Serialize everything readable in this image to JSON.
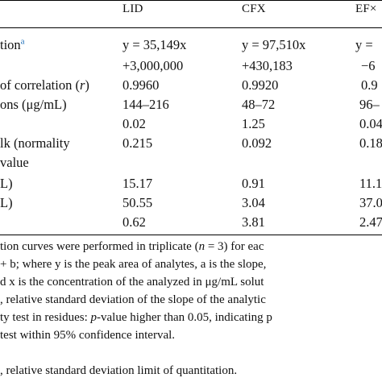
{
  "table": {
    "headers": [
      "LID",
      "CFX",
      "EFX"
    ],
    "header_visible": [
      "LID",
      "CFX",
      "EF×"
    ],
    "rows": [
      {
        "label": "tion",
        "label_sup": "a",
        "cells": [
          "y = 35,149x",
          "y = 97,510x",
          "y ="
        ]
      },
      {
        "label": "",
        "cells": [
          "+3,000,000",
          "+430,183",
          "−6"
        ]
      },
      {
        "label": "of correlation (r)",
        "cells": [
          "0.9960",
          "0.9920",
          "0.9"
        ]
      },
      {
        "label": "ons (μg/mL)",
        "cells": [
          "144–216",
          "48–72",
          "96–"
        ]
      },
      {
        "label": "",
        "cells": [
          "0.02",
          "1.25",
          "0.04"
        ]
      },
      {
        "label": "lk (normality",
        "cells": [
          "0.215",
          "0.092",
          "0.18"
        ]
      },
      {
        "label": "value",
        "cells": [
          "",
          "",
          ""
        ]
      },
      {
        "label": "L)",
        "cells": [
          "15.17",
          "0.91",
          "11.1"
        ]
      },
      {
        "label": "L)",
        "cells": [
          "50.55",
          "3.04",
          "37.0"
        ]
      },
      {
        "label": "",
        "cells": [
          "0.62",
          "3.81",
          "2.47"
        ]
      }
    ]
  },
  "footnotes": [
    "tion curves were performed in triplicate (n = 3) for eac",
    "+ b; where y is the peak area of analytes, a is the slope,",
    "d x is the concentration of the analyzed in μg/mL solut",
    ", relative standard deviation of the slope of the analytic",
    "ty test in residues: p-value higher than 0.05, indicating p",
    "test within 95% confidence interval.",
    ", relative standard deviation limit of quantitation."
  ]
}
